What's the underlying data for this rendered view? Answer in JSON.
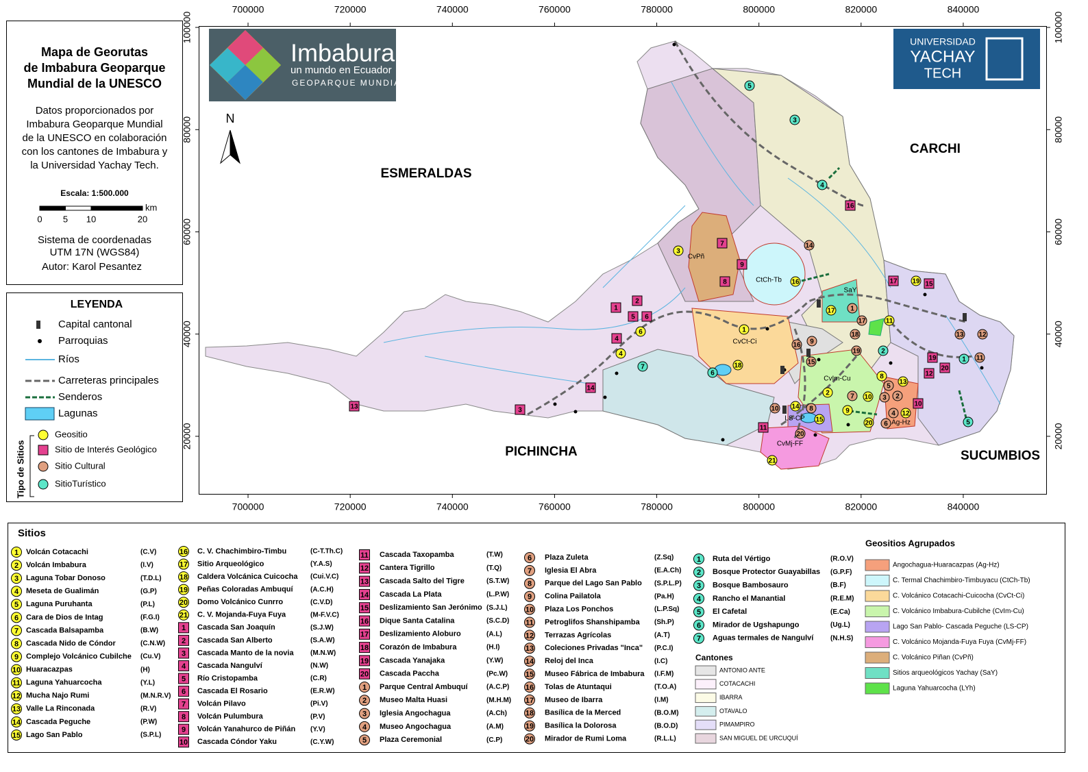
{
  "info_panel": {
    "title": [
      "Mapa de Georutas",
      "de Imbabura Geoparque",
      "Mundial de la UNESCO"
    ],
    "description": [
      "Datos proporcionados por",
      "Imbabura Geoparque Mundial",
      "de la UNESCO en colaboración",
      "con los cantones de Imbabura y",
      "la Universidad Yachay Tech."
    ],
    "scale_title": "Escala: 1:500.000",
    "scale_ticks": [
      0,
      5,
      10,
      20
    ],
    "scale_unit": "km",
    "crs": [
      "Sistema de coordenadas",
      "UTM 17N (WGS84)"
    ],
    "author": "Autor: Karol Pesantez"
  },
  "legend": {
    "title": "LEYENDA",
    "items": [
      "Capital cantonal",
      "Parroquias",
      "Ríos",
      "Carreteras principales",
      "Senderos",
      "Lagunas"
    ],
    "site_types_title": "Tipo de Sitios",
    "site_types": [
      "Geositio",
      "Sitio de Interés Geológico",
      "Sitio Cultural",
      "SitioTurístico"
    ]
  },
  "map": {
    "xlim": [
      690340,
      856370
    ],
    "ylim": [
      8600,
      100270
    ],
    "xticks": [
      700000,
      720000,
      740000,
      760000,
      780000,
      800000,
      820000,
      840000
    ],
    "yticks": [
      20000,
      40000,
      60000,
      80000,
      100000
    ],
    "north": "N",
    "regions": [
      "ESMERALDAS",
      "CARCHI",
      "PICHINCHA",
      "SUCUMBIOS"
    ],
    "logos": {
      "geoparque": [
        "Imbabura",
        "un mundo en Ecuador",
        "GEOPARQUE MUNDIAL"
      ],
      "university": [
        "UNIVERSIDAD",
        "YACHAY",
        "TECH"
      ]
    },
    "area_labels": [
      "CvPñ",
      "CtCh-Tb",
      "SaY",
      "CvCt-Ci",
      "CvIm-Cu",
      "Ag-Hz",
      "LS-CP",
      "CvMj-FF"
    ],
    "markers": {
      "geositio": [
        3,
        1,
        6,
        4,
        18,
        21,
        16,
        17,
        11,
        19,
        14,
        15,
        2,
        9,
        20,
        10,
        13,
        12,
        8
      ],
      "geologico": [
        1,
        2,
        5,
        6,
        4,
        7,
        9,
        8,
        14,
        3,
        13,
        16,
        17,
        15,
        19,
        12,
        20,
        10,
        11
      ],
      "cultural": [
        14,
        1,
        17,
        18,
        9,
        16,
        19,
        15,
        8,
        10,
        7,
        3,
        2,
        4,
        6,
        5,
        20,
        13,
        12,
        11
      ],
      "turistico": [
        5,
        3,
        4,
        2,
        7,
        6,
        1,
        5
      ]
    }
  },
  "sites": {
    "title": "Sitios",
    "geositio": [
      {
        "n": 1,
        "name": "Volcán Cotacachi",
        "code": "(C.V)"
      },
      {
        "n": 2,
        "name": "Volcán Imbabura",
        "code": "(I.V)"
      },
      {
        "n": 3,
        "name": "Laguna Tobar Donoso",
        "code": "(T.D.L)"
      },
      {
        "n": 4,
        "name": "Meseta de Gualimán",
        "code": "(G.P)"
      },
      {
        "n": 5,
        "name": "Laguna Puruhanta",
        "code": "(P.L)"
      },
      {
        "n": 6,
        "name": "Cara de Dios de Intag",
        "code": "(F.G.I)"
      },
      {
        "n": 7,
        "name": "Cascada Balsapamba",
        "code": "(B.W)"
      },
      {
        "n": 8,
        "name": "Cascada Nido de Cóndor",
        "code": "(C.N.W)"
      },
      {
        "n": 9,
        "name": "Complejo Volcánico Cubilche",
        "code": "(Cu.V)"
      },
      {
        "n": 10,
        "name": "Huaracazpas",
        "code": "(H)"
      },
      {
        "n": 11,
        "name": "Laguna Yahuarcocha",
        "code": "(Y.L)"
      },
      {
        "n": 12,
        "name": "Mucha Najo Rumi",
        "code": "(M.N.R.V)"
      },
      {
        "n": 13,
        "name": "Valle La Rinconada",
        "code": "(R.V)"
      },
      {
        "n": 14,
        "name": "Cascada Peguche",
        "code": "(P.W)"
      },
      {
        "n": 15,
        "name": "Lago San Pablo",
        "code": "(S.P.L)"
      },
      {
        "n": 16,
        "name": "C. V. Chachimbiro-Timbu",
        "code": "(C-T.Th.C)"
      },
      {
        "n": 17,
        "name": "Sitio Arqueológico",
        "code": "(Y.A.S)"
      },
      {
        "n": 18,
        "name": "Caldera Volcánica Cuicocha",
        "code": "(Cui.V.C)"
      },
      {
        "n": 19,
        "name": "Peñas Coloradas Ambuquí",
        "code": "(A.C.H)"
      },
      {
        "n": 20,
        "name": "Domo Volcánico Cunrro",
        "code": "(C.V.D)"
      },
      {
        "n": 21,
        "name": "C. V. Mojanda-Fuya Fuya",
        "code": "(M-F.V.C)"
      }
    ],
    "geologico": [
      {
        "n": 1,
        "name": "Cascada San Joaquín",
        "code": "(S.J.W)"
      },
      {
        "n": 2,
        "name": "Cascada San Alberto",
        "code": "(S.A.W)"
      },
      {
        "n": 3,
        "name": "Cascada Manto de la novia",
        "code": "(M.N.W)"
      },
      {
        "n": 4,
        "name": "Cascada Nangulví",
        "code": "(N.W)"
      },
      {
        "n": 5,
        "name": "Río Cristopamba",
        "code": "(C.R)"
      },
      {
        "n": 6,
        "name": "Cascada El Rosario",
        "code": "(E.R.W)"
      },
      {
        "n": 7,
        "name": "Volcán Pilavo",
        "code": "(Pi.V)"
      },
      {
        "n": 8,
        "name": "Volcán Pulumbura",
        "code": "(P.V)"
      },
      {
        "n": 9,
        "name": "Volcán Yanahurco de Piñán",
        "code": "(Y.V)"
      },
      {
        "n": 10,
        "name": "Cascada Cóndor Yaku",
        "code": "(C.Y.W)"
      },
      {
        "n": 11,
        "name": "Cascada Taxopamba",
        "code": "(T.W)"
      },
      {
        "n": 12,
        "name": "Cantera Tigrillo",
        "code": "(T.Q)"
      },
      {
        "n": 13,
        "name": "Cascada Salto del Tigre",
        "code": "(S.T.W)"
      },
      {
        "n": 14,
        "name": "Cascada La Plata",
        "code": "(L.P.W)"
      },
      {
        "n": 15,
        "name": "Deslizamiento San Jerónimo",
        "code": "(S.J.L)"
      },
      {
        "n": 16,
        "name": "Dique Santa Catalina",
        "code": "(S.C.D)"
      },
      {
        "n": 17,
        "name": "Deslizamiento Aloburo",
        "code": "(A.L)"
      },
      {
        "n": 18,
        "name": "Corazón de Imbabura",
        "code": "(H.I)"
      },
      {
        "n": 19,
        "name": "Cascada Yanajaka",
        "code": "(Y.W)"
      },
      {
        "n": 20,
        "name": "Cascada Paccha",
        "code": "(Pc.W)"
      }
    ],
    "cultural": [
      {
        "n": 1,
        "name": "Parque Central Ambuquí",
        "code": "(A.C.P)"
      },
      {
        "n": 2,
        "name": "Museo Malta Huasi",
        "code": "(M.H.M)"
      },
      {
        "n": 3,
        "name": "Iglesia Angochagua",
        "code": "(A.Ch)"
      },
      {
        "n": 4,
        "name": "Museo Angochagua",
        "code": "(A.M)"
      },
      {
        "n": 5,
        "name": "Plaza Ceremonial",
        "code": "(C.P)"
      },
      {
        "n": 6,
        "name": "Plaza Zuleta",
        "code": "(Z.Sq)"
      },
      {
        "n": 7,
        "name": "Iglesia El Abra",
        "code": "(E.A.Ch)"
      },
      {
        "n": 8,
        "name": "Parque del Lago San Pablo",
        "code": "(S.P.L.P)"
      },
      {
        "n": 9,
        "name": "Colina Pailatola",
        "code": "(Pa.H)"
      },
      {
        "n": 10,
        "name": "Plaza Los Ponchos",
        "code": "(L.P.Sq)"
      },
      {
        "n": 11,
        "name": "Petroglifos Shanshipamba",
        "code": "(Sh.P)"
      },
      {
        "n": 12,
        "name": "Terrazas Agrícolas",
        "code": "(A.T)"
      },
      {
        "n": 13,
        "name": "Coleciones Privadas \"Inca\"",
        "code": "(P.C.I)"
      },
      {
        "n": 14,
        "name": "Reloj del Inca",
        "code": "(I.C)"
      },
      {
        "n": 15,
        "name": "Museo Fábrica de Imbabura",
        "code": "(I.F.M)"
      },
      {
        "n": 16,
        "name": "Tolas de Atuntaqui",
        "code": "(T.O.A)"
      },
      {
        "n": 17,
        "name": "Museo de Ibarra",
        "code": "(I.M)"
      },
      {
        "n": 18,
        "name": "Basílica de la Merced",
        "code": "(B.O.M)"
      },
      {
        "n": 19,
        "name": "Basílica la Dolorosa",
        "code": "(B.O.D)"
      },
      {
        "n": 20,
        "name": "Mirador de Rumi Loma",
        "code": "(R.L.L)"
      }
    ],
    "turistico": [
      {
        "n": 1,
        "name": "Ruta del Vértigo",
        "code": "(R.O.V)"
      },
      {
        "n": 2,
        "name": "Bosque Protector Guayabillas",
        "code": "(G.P.F)"
      },
      {
        "n": 3,
        "name": "Bosque Bambosauro",
        "code": "(B.F)"
      },
      {
        "n": 4,
        "name": "Rancho el Manantial",
        "code": "(R.E.M)"
      },
      {
        "n": 5,
        "name": "El Cafetal",
        "code": "(E.Ca)"
      },
      {
        "n": 6,
        "name": "Mirador de Ugshapungo",
        "code": "(Ug.L)"
      },
      {
        "n": 7,
        "name": "Aguas termales de Nangulví",
        "code": "(N.H.S)"
      }
    ],
    "cantones_title": "Cantones",
    "cantones": [
      {
        "name": "ANTONIO ANTE",
        "color": "#e6e6e6"
      },
      {
        "name": "COTACACHI",
        "color": "#fcf0fb"
      },
      {
        "name": "IBARRA",
        "color": "#fcfbe6"
      },
      {
        "name": "OTAVALO",
        "color": "#d4eeee"
      },
      {
        "name": "PIMAMPIRO",
        "color": "#e4def8"
      },
      {
        "name": "SAN MIGUEL DE URCUQUÍ",
        "color": "#e8d6de"
      }
    ],
    "grouped_title": "Geositios Agrupados",
    "grouped": [
      {
        "name": "Angochagua-Huaracazpas (Ag-Hz)",
        "color": "#f5a07c"
      },
      {
        "name": "C. Termal Chachimbiro-Timbuyacu (CtCh-Tb)",
        "color": "#cdf6fb"
      },
      {
        "name": "C. Volcánico Cotacachi-Cuicocha (CvCt-Ci)",
        "color": "#fbd99a"
      },
      {
        "name": "C. Volcánico Imbabura-Cubilche (CvIm-Cu)",
        "color": "#c9f5ac"
      },
      {
        "name": "Lago San Pablo- Cascada Peguche (LS-CP)",
        "color": "#b8a4f2"
      },
      {
        "name": "C. Volcánico Mojanda-Fuya Fuya (CvMj-FF)",
        "color": "#f59ae0"
      },
      {
        "name": "C. Volcánico Piñan (CvPñ)",
        "color": "#dcae7a"
      },
      {
        "name": "Sitios arqueológicos Yachay (SaY)",
        "color": "#6fe0c4"
      },
      {
        "name": "Laguna Yahuarcocha (LYh)",
        "color": "#5ee24a"
      }
    ]
  }
}
